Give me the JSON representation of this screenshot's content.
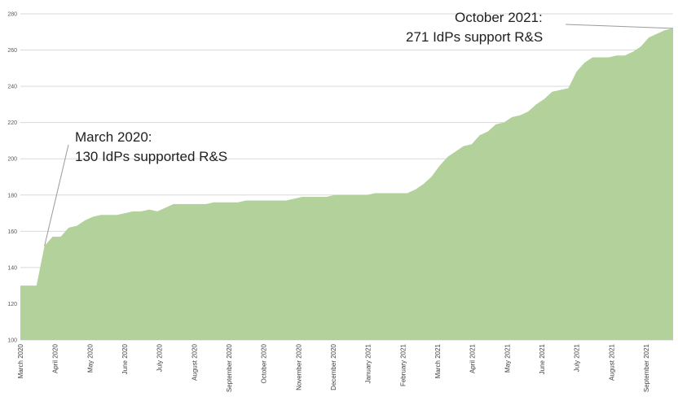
{
  "chart_data": {
    "type": "area",
    "title": "",
    "xlabel": "",
    "ylabel": "",
    "ylim": [
      100,
      280
    ],
    "yticks": [
      100,
      120,
      140,
      160,
      180,
      200,
      220,
      240,
      260,
      280
    ],
    "grid": true,
    "legend": "none",
    "colors": {
      "fill": "#b3d19a",
      "grid": "#d9d9d9",
      "text": "#404040",
      "leader": "#9a9a9a"
    },
    "x_tick_labels": [
      "March 2020",
      "April 2020",
      "May 2020",
      "June 2020",
      "July 2020",
      "August 2020",
      "September 2020",
      "October 2020",
      "November 2020",
      "December 2020",
      "January 2021",
      "February 2021",
      "March 2021",
      "April 2021",
      "May 2021",
      "June 2021",
      "July 2021",
      "August 2021",
      "September 2021"
    ],
    "values": [
      130,
      130,
      130,
      152,
      157,
      157,
      162,
      163,
      166,
      168,
      169,
      169,
      169,
      170,
      171,
      171,
      172,
      171,
      173,
      175,
      175,
      175,
      175,
      175,
      176,
      176,
      176,
      176,
      177,
      177,
      177,
      177,
      177,
      177,
      178,
      179,
      179,
      179,
      179,
      180,
      180,
      180,
      180,
      180,
      181,
      181,
      181,
      181,
      181,
      183,
      186,
      190,
      196,
      201,
      204,
      207,
      208,
      213,
      215,
      219,
      220,
      223,
      224,
      226,
      230,
      233,
      237,
      238,
      239,
      248,
      253,
      256,
      256,
      256,
      257,
      257,
      259,
      262,
      267,
      269,
      271,
      272
    ],
    "annotations": [
      {
        "line1": "March 2020:",
        "line2": "130 IdPs supported R&S",
        "point_index": 3
      },
      {
        "line1": "October 2021:",
        "line2": "271 IdPs support R&S",
        "point_index": 81
      }
    ]
  }
}
